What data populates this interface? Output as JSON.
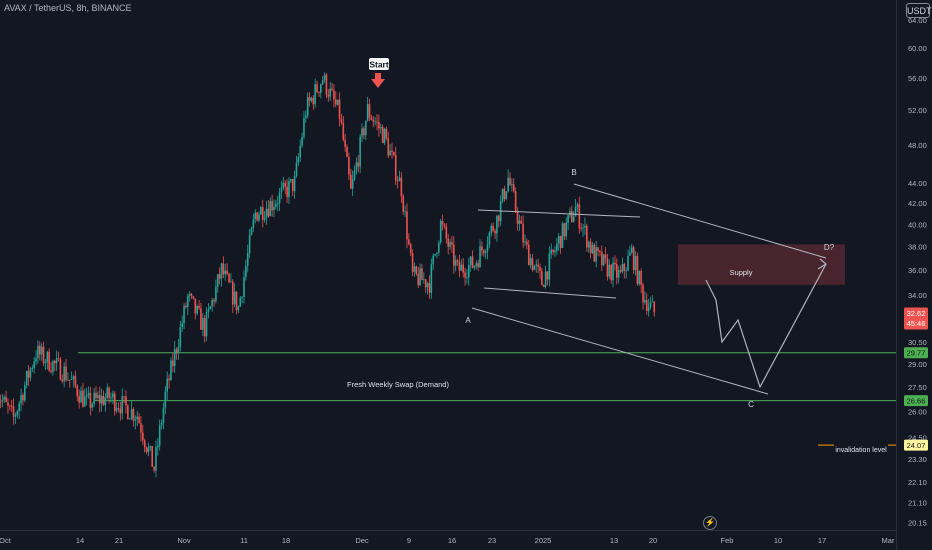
{
  "header": {
    "symbol_line": "AVAX / TetherUS, 8h, BINANCE",
    "currency": "USDT"
  },
  "icons": {
    "replay": "lightning-icon"
  },
  "colors": {
    "background": "#131722",
    "up": "#26a69a",
    "down": "#ef5350",
    "demand_line": "#4caf50",
    "supply_zone": "#5a2a33",
    "drawing": "#b2b5be",
    "invalidation": "#ff9800",
    "start_arrow": "#ef5350"
  },
  "chart_data": {
    "type": "candlestick",
    "title": "AVAX / TetherUS, 8h, BINANCE",
    "y_axis": {
      "scale": "log",
      "ticks": [
        64.0,
        60.0,
        56.0,
        52.0,
        48.0,
        44.0,
        42.0,
        40.0,
        38.0,
        36.0,
        34.0,
        32.0,
        30.5,
        29.0,
        27.5,
        26.0,
        24.5,
        23.3,
        22.1,
        21.1,
        20.15
      ],
      "ylim": [
        19.8,
        67.0
      ]
    },
    "x_axis": {
      "ticks": [
        "Oct",
        "14",
        "21",
        "Nov",
        "11",
        "18",
        "Dec",
        "9",
        "16",
        "23",
        "2025",
        "13",
        "20",
        "Feb",
        "10",
        "17",
        "Mar"
      ]
    },
    "price_path": [
      {
        "x": "Oct 07",
        "price": 27.2
      },
      {
        "x": "Oct 10",
        "price": 25.6
      },
      {
        "x": "Oct 14",
        "price": 29.8
      },
      {
        "x": "Oct 19",
        "price": 28.5
      },
      {
        "x": "Oct 23",
        "price": 26.5
      },
      {
        "x": "Oct 27",
        "price": 26.9
      },
      {
        "x": "Nov 01",
        "price": 25.8
      },
      {
        "x": "Nov 04",
        "price": 22.8
      },
      {
        "x": "Nov 06",
        "price": 27.0
      },
      {
        "x": "Nov 10",
        "price": 33.8
      },
      {
        "x": "Nov 13",
        "price": 31.5
      },
      {
        "x": "Nov 16",
        "price": 36.0
      },
      {
        "x": "Nov 19",
        "price": 33.0
      },
      {
        "x": "Nov 22",
        "price": 41.0
      },
      {
        "x": "Nov 25",
        "price": 42.0
      },
      {
        "x": "Nov 29",
        "price": 44.0
      },
      {
        "x": "Dec 01",
        "price": 52.0
      },
      {
        "x": "Dec 04",
        "price": 56.0
      },
      {
        "x": "Dec 07",
        "price": 51.5
      },
      {
        "x": "Dec 09",
        "price": 43.0
      },
      {
        "x": "Dec 12",
        "price": 52.0
      },
      {
        "x": "Dec 15",
        "price": 49.0
      },
      {
        "x": "Dec 18",
        "price": 43.5
      },
      {
        "x": "Dec 20",
        "price": 35.5
      },
      {
        "x": "Dec 23",
        "price": 35.0
      },
      {
        "x": "Dec 25",
        "price": 40.0
      },
      {
        "x": "Dec 28",
        "price": 36.0
      },
      {
        "x": "Dec 31",
        "price": 36.5
      },
      {
        "x": "Jan 04",
        "price": 40.5
      },
      {
        "x": "Jan 06",
        "price": 44.5
      },
      {
        "x": "Jan 09",
        "price": 38.0
      },
      {
        "x": "Jan 12",
        "price": 35.0
      },
      {
        "x": "Jan 15",
        "price": 38.5
      },
      {
        "x": "Jan 18",
        "price": 41.5
      },
      {
        "x": "Jan 21",
        "price": 37.5
      },
      {
        "x": "Jan 24",
        "price": 36.0
      },
      {
        "x": "Jan 26",
        "price": 35.5
      },
      {
        "x": "Jan 28",
        "price": 37.5
      },
      {
        "x": "Jan 30",
        "price": 34.0
      },
      {
        "x": "Feb 01",
        "price": 32.62
      }
    ],
    "annotations": {
      "start_label": "Start",
      "a_label": "A",
      "b_label": "B",
      "c_label": "C",
      "d_label": "D?",
      "supply_label": "Supply",
      "demand_label": "Fresh Weekly Swap (Demand)",
      "invalidation_label": "invalidation level"
    },
    "levels": {
      "demand_upper": 29.77,
      "demand_lower": 26.66,
      "invalidation": 24.07,
      "supply_low": 34.8,
      "supply_high": 38.2
    },
    "price_tags": {
      "current": "32.62",
      "countdown": "45:46",
      "demand_upper": "29.77",
      "demand_lower": "26.66",
      "invalidation": "24.07"
    }
  }
}
